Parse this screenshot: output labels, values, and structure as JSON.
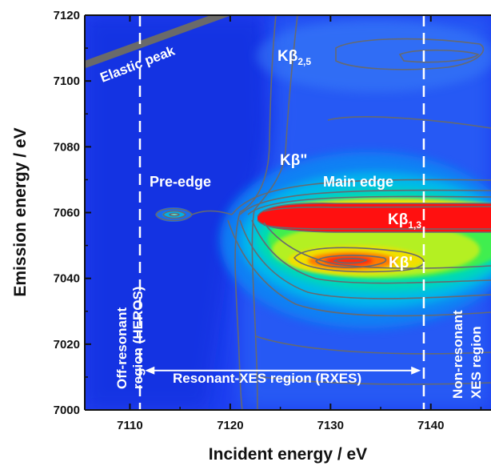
{
  "chart_data": {
    "type": "heatmap",
    "title": "",
    "xlabel": "Incident energy / eV",
    "ylabel": "Emission energy / eV",
    "xlim": [
      7105.5,
      7146
    ],
    "ylim": [
      7000,
      7120
    ],
    "x_ticks": [
      7110,
      7120,
      7130,
      7140
    ],
    "y_ticks": [
      7000,
      7020,
      7040,
      7060,
      7080,
      7100,
      7120
    ],
    "x_ticks_text": [
      "7110",
      "7120",
      "7130",
      "7140"
    ],
    "y_ticks_text": [
      "7000",
      "7020",
      "7040",
      "7060",
      "7080",
      "7100",
      "7120"
    ],
    "grid": false,
    "colormap": [
      "#1e3cf0",
      "#0a7cf5",
      "#00c0e8",
      "#00e0a0",
      "#40f040",
      "#c0f020",
      "#f0e000",
      "#ff6000",
      "#ff1010"
    ],
    "features": [
      {
        "name": "pre-edge",
        "x": 7114,
        "y": 7061,
        "intensity": 0.25
      },
      {
        "name": "kbeta-1-3",
        "x": 7128,
        "y": 7059,
        "intensity": 1.0
      },
      {
        "name": "kbeta-prime",
        "x": 7131,
        "y": 7044,
        "intensity": 0.8
      }
    ],
    "dashed_lines_x": [
      7111,
      7139.3
    ],
    "elastic_line": {
      "x": [
        7105.5,
        7120
      ],
      "y": [
        7105,
        7121
      ]
    },
    "rxes_arrow": {
      "x": [
        7111.5,
        7139
      ],
      "y": 7012
    },
    "annotations": {
      "elastic_peak": "Elastic peak",
      "kb25_main": "Kβ",
      "kb25_sub": "2,5",
      "kb_dprime": "Kβ\"",
      "pre_edge": "Pre-edge",
      "main_edge": "Main edge",
      "kb13_main": "Kβ",
      "kb13_sub": "1,3",
      "kb_prime": "Kβ'",
      "offres_line1": "Off-resonant",
      "offres_line2": "region (HEROS)",
      "rxes": "Resonant-XES region (RXES)",
      "nonres_line1": "Non-resonant",
      "nonres_line2": "XES region"
    }
  }
}
